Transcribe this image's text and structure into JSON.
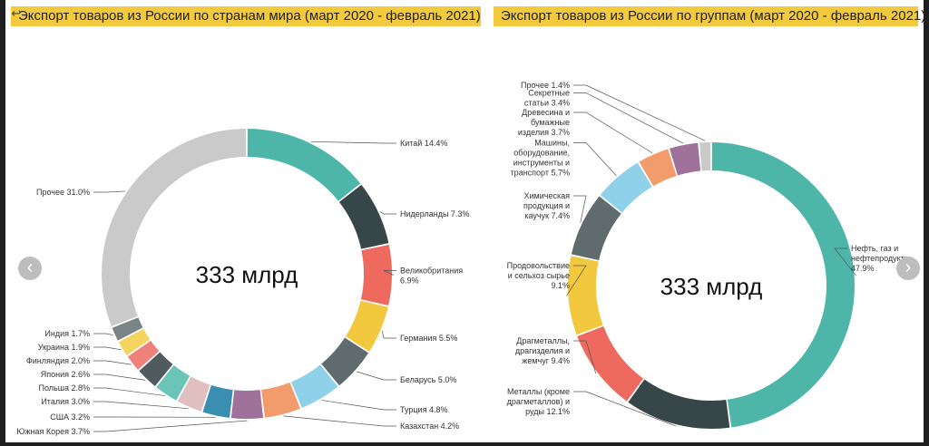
{
  "titles": {
    "left": "Экспорт товаров из России по странам мира (март 2020 - февраль 2021)",
    "right": "Экспорт товаров из России по группам (март 2020 - февраль 2021)"
  },
  "icons": {
    "back": "back-arrow-icon",
    "prev": "chevron-left-icon",
    "next": "chevron-right-icon"
  },
  "chart_data": [
    {
      "type": "pie",
      "title": "Экспорт товаров из России по странам мира (март 2020 - февраль 2021)",
      "center_label": "333 млрд",
      "unit": "%",
      "slices": [
        {
          "name": "Китай",
          "value": 14.4,
          "label": "Китай 14.4%",
          "color": "#4db6a9"
        },
        {
          "name": "Нидерланды",
          "value": 7.3,
          "label": "Нидерланды 7.3%",
          "color": "#374649"
        },
        {
          "name": "Великобритания",
          "value": 6.9,
          "label": "Великобритания|6.9%",
          "color": "#ee6a5f"
        },
        {
          "name": "Германия",
          "value": 5.5,
          "label": "Германия 5.5%",
          "color": "#f1c83e"
        },
        {
          "name": "Беларусь",
          "value": 5.0,
          "label": "Беларусь 5.0%",
          "color": "#5f6b6d"
        },
        {
          "name": "Турция",
          "value": 4.8,
          "label": "Турция 4.8%",
          "color": "#8fd1e8"
        },
        {
          "name": "Казахстан",
          "value": 4.2,
          "label": "Казахстан 4.2%",
          "color": "#f29c6b"
        },
        {
          "name": "Южная Корея",
          "value": 3.7,
          "label": "Южная Корея 3.7%",
          "color": "#a0719a"
        },
        {
          "name": "США",
          "value": 3.2,
          "label": "США 3.2%",
          "color": "#3a8fb0"
        },
        {
          "name": "Италия",
          "value": 3.0,
          "label": "Италия 3.0%",
          "color": "#dfbfbf"
        },
        {
          "name": "Польша",
          "value": 2.8,
          "label": "Польша 2.8%",
          "color": "#6cc3b8"
        },
        {
          "name": "Япония",
          "value": 2.6,
          "label": "Япония 2.6%",
          "color": "#4f5b5e"
        },
        {
          "name": "Финляндия",
          "value": 2.0,
          "label": "Финляндия 2.0%",
          "color": "#f0807a"
        },
        {
          "name": "Украина",
          "value": 1.9,
          "label": "Украина 1.9%",
          "color": "#f3d45c"
        },
        {
          "name": "Индия",
          "value": 1.7,
          "label": "Индия 1.7%",
          "color": "#7a8486"
        },
        {
          "name": "Прочее",
          "value": 31.0,
          "label": "Прочее 31.0%",
          "color": "#cacaca"
        }
      ]
    },
    {
      "type": "pie",
      "title": "Экспорт товаров из России по группам (март 2020 - февраль 2021)",
      "center_label": "333 млрд",
      "unit": "%",
      "slices": [
        {
          "name": "Нефть, газ и нефтепродукты",
          "value": 47.9,
          "label": "Нефть, газ и|нефтепродукты|47.9%",
          "color": "#4db6a9"
        },
        {
          "name": "Металлы (кроме драгметаллов) и руды",
          "value": 12.1,
          "label": "Металлы (кроме|драгметаллов) и|руды 12.1%",
          "color": "#374649"
        },
        {
          "name": "Драгметаллы, драгизделия и жемчуг",
          "value": 9.4,
          "label": "Драгметаллы,|драгизделия и|жемчуг 9.4%",
          "color": "#ee6a5f"
        },
        {
          "name": "Продовольствие и сельхоз сырье",
          "value": 9.1,
          "label": "Продовольствие|и сельхоз сырье|9.1%",
          "color": "#f1c83e"
        },
        {
          "name": "Химическая продукция и каучук",
          "value": 7.4,
          "label": "Химическая|продукция и|каучук 7.4%",
          "color": "#5f6b6d"
        },
        {
          "name": "Машины, оборудование, инструменты и транспорт",
          "value": 5.7,
          "label": "Машины,|оборудование,|инструменты и|транспорт 5.7%",
          "color": "#8fd1e8"
        },
        {
          "name": "Древесина и бумажные изделия",
          "value": 3.7,
          "label": "Древесина и|бумажные|изделия 3.7%",
          "color": "#f29c6b"
        },
        {
          "name": "Секретные статьи",
          "value": 3.4,
          "label": "Секретные|статьи 3.4%",
          "color": "#a0719a"
        },
        {
          "name": "Прочее",
          "value": 1.4,
          "label": "Прочее 1.4%",
          "color": "#cacaca"
        }
      ]
    }
  ]
}
